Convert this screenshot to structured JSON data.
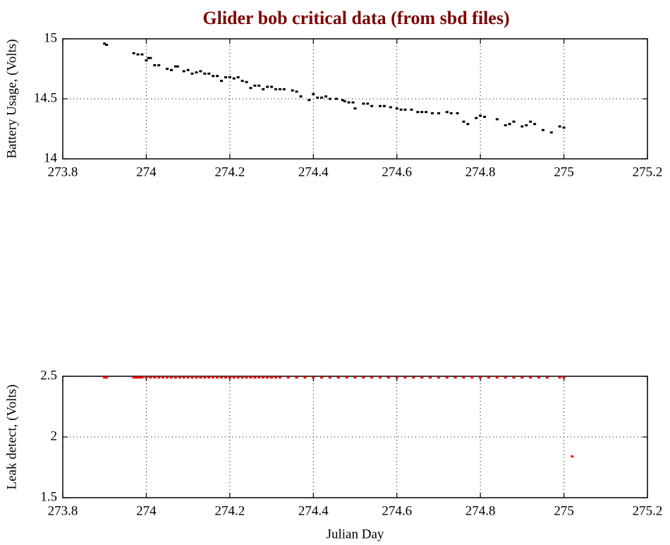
{
  "chart_data": [
    {
      "type": "scatter",
      "title": "Glider bob critical data (from sbd files)",
      "y_label": "Battery Usage, (Volts)",
      "color": "#000000",
      "x": [
        273.9,
        273.905,
        273.97,
        273.98,
        273.99,
        274.0,
        274.005,
        274.01,
        274.02,
        274.03,
        274.05,
        274.06,
        274.07,
        274.075,
        274.09,
        274.1,
        274.11,
        274.12,
        274.13,
        274.14,
        274.15,
        274.16,
        274.17,
        274.18,
        274.19,
        274.2,
        274.21,
        274.22,
        274.23,
        274.24,
        274.25,
        274.26,
        274.27,
        274.28,
        274.29,
        274.3,
        274.31,
        274.32,
        274.33,
        274.35,
        274.36,
        274.37,
        274.39,
        274.4,
        274.41,
        274.42,
        274.43,
        274.44,
        274.455,
        274.47,
        274.475,
        274.485,
        274.495,
        274.5,
        274.52,
        274.53,
        274.54,
        274.56,
        274.57,
        274.585,
        274.6,
        274.61,
        274.62,
        274.635,
        274.65,
        274.66,
        274.67,
        274.685,
        274.7,
        274.72,
        274.73,
        274.745,
        274.76,
        274.77,
        274.79,
        274.8,
        274.81,
        274.84,
        274.86,
        274.87,
        274.88,
        274.9,
        274.91,
        274.92,
        274.93,
        274.95,
        274.97,
        274.99,
        275.0
      ],
      "values": [
        14.96,
        14.95,
        14.88,
        14.87,
        14.87,
        14.82,
        14.84,
        14.84,
        14.78,
        14.78,
        14.75,
        14.74,
        14.77,
        14.77,
        14.73,
        14.74,
        14.71,
        14.72,
        14.73,
        14.71,
        14.71,
        14.69,
        14.69,
        14.65,
        14.68,
        14.68,
        14.67,
        14.68,
        14.65,
        14.64,
        14.59,
        14.61,
        14.61,
        14.58,
        14.6,
        14.6,
        14.58,
        14.58,
        14.58,
        14.57,
        14.56,
        14.52,
        14.49,
        14.54,
        14.51,
        14.51,
        14.52,
        14.5,
        14.5,
        14.49,
        14.48,
        14.47,
        14.47,
        14.42,
        14.46,
        14.46,
        14.44,
        14.44,
        14.44,
        14.43,
        14.42,
        14.41,
        14.41,
        14.41,
        14.39,
        14.39,
        14.39,
        14.38,
        14.38,
        14.39,
        14.38,
        14.38,
        14.31,
        14.29,
        14.34,
        14.36,
        14.35,
        14.33,
        14.28,
        14.29,
        14.31,
        14.27,
        14.28,
        14.31,
        14.29,
        14.24,
        14.22,
        14.27,
        14.26
      ],
      "xlim": [
        273.8,
        275.2
      ],
      "xticks": [
        273.8,
        274,
        274.2,
        274.4,
        274.6,
        274.8,
        275,
        275.2
      ],
      "ylim": [
        14,
        15
      ],
      "yticks": [
        14,
        14.5,
        15
      ],
      "grid": true
    },
    {
      "type": "scatter",
      "x_label": "Julian Day",
      "y_label": "Leak detect, (Volts)",
      "color": "#ff0000",
      "x": [
        273.9,
        273.905,
        273.97,
        273.975,
        273.98,
        273.985,
        273.99,
        274.0,
        274.01,
        274.02,
        274.03,
        274.04,
        274.05,
        274.06,
        274.07,
        274.08,
        274.09,
        274.1,
        274.11,
        274.12,
        274.13,
        274.14,
        274.15,
        274.16,
        274.17,
        274.18,
        274.19,
        274.2,
        274.21,
        274.22,
        274.23,
        274.24,
        274.25,
        274.26,
        274.27,
        274.28,
        274.29,
        274.3,
        274.31,
        274.32,
        274.34,
        274.36,
        274.38,
        274.4,
        274.42,
        274.44,
        274.46,
        274.48,
        274.5,
        274.52,
        274.54,
        274.56,
        274.58,
        274.6,
        274.62,
        274.64,
        274.66,
        274.68,
        274.7,
        274.72,
        274.74,
        274.76,
        274.78,
        274.8,
        274.82,
        274.84,
        274.86,
        274.88,
        274.9,
        274.92,
        274.94,
        274.96,
        274.99,
        275.0,
        275.02
      ],
      "values": [
        2.49,
        2.49,
        2.49,
        2.49,
        2.49,
        2.49,
        2.49,
        2.49,
        2.49,
        2.49,
        2.49,
        2.49,
        2.49,
        2.49,
        2.49,
        2.49,
        2.49,
        2.49,
        2.49,
        2.49,
        2.49,
        2.49,
        2.49,
        2.49,
        2.49,
        2.49,
        2.49,
        2.49,
        2.49,
        2.49,
        2.49,
        2.49,
        2.49,
        2.49,
        2.49,
        2.49,
        2.49,
        2.49,
        2.49,
        2.49,
        2.49,
        2.49,
        2.49,
        2.49,
        2.49,
        2.49,
        2.49,
        2.49,
        2.49,
        2.49,
        2.49,
        2.49,
        2.49,
        2.49,
        2.49,
        2.49,
        2.49,
        2.49,
        2.49,
        2.49,
        2.49,
        2.49,
        2.49,
        2.49,
        2.49,
        2.49,
        2.49,
        2.49,
        2.49,
        2.49,
        2.49,
        2.49,
        2.49,
        2.49,
        1.84
      ],
      "xlim": [
        273.8,
        275.2
      ],
      "xticks": [
        273.8,
        274,
        274.2,
        274.4,
        274.6,
        274.8,
        275,
        275.2
      ],
      "ylim": [
        1.5,
        2.5
      ],
      "yticks": [
        1.5,
        2,
        2.5
      ],
      "grid": true
    }
  ]
}
